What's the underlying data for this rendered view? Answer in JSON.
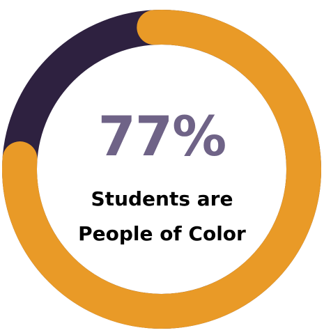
{
  "chart_data": {
    "type": "donut",
    "value_percent": 77,
    "remainder_percent": 23,
    "value_label": "77%",
    "caption_line1": "Students are",
    "caption_line2": "People of Color",
    "colors": {
      "value_arc": "#E99A27",
      "remainder_arc": "#2E2140",
      "value_text": "#6F6387",
      "caption_text": "#000000",
      "background": "#FFFFFF"
    }
  }
}
